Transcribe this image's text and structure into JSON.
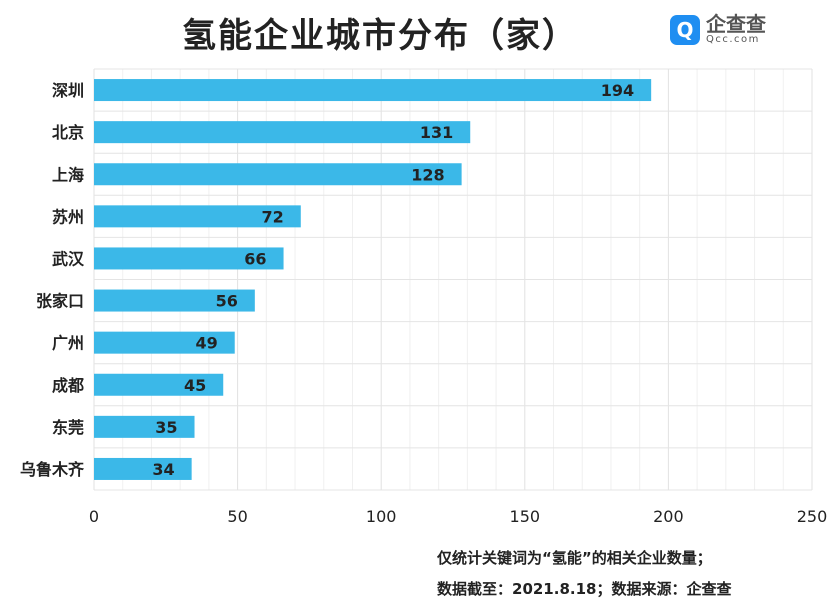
{
  "chart_data": {
    "type": "bar",
    "orientation": "horizontal",
    "title": "氢能企业城市分布（家）",
    "categories": [
      "深圳",
      "北京",
      "上海",
      "苏州",
      "武汉",
      "张家口",
      "广州",
      "成都",
      "东莞",
      "乌鲁木齐"
    ],
    "values": [
      194,
      131,
      128,
      72,
      66,
      56,
      49,
      45,
      35,
      34
    ],
    "xlim": [
      0,
      250
    ],
    "xticks": [
      0,
      50,
      100,
      150,
      200,
      250
    ],
    "xlabel": "",
    "ylabel": "",
    "grid": true,
    "bar_color": "#3bb8e8"
  },
  "logo": {
    "cn": "企查查",
    "en": "Qcc.com"
  },
  "footnotes": [
    "仅统计关键词为“氢能”的相关企业数量；",
    "数据截至：2021.8.18；数据来源：企查查"
  ]
}
